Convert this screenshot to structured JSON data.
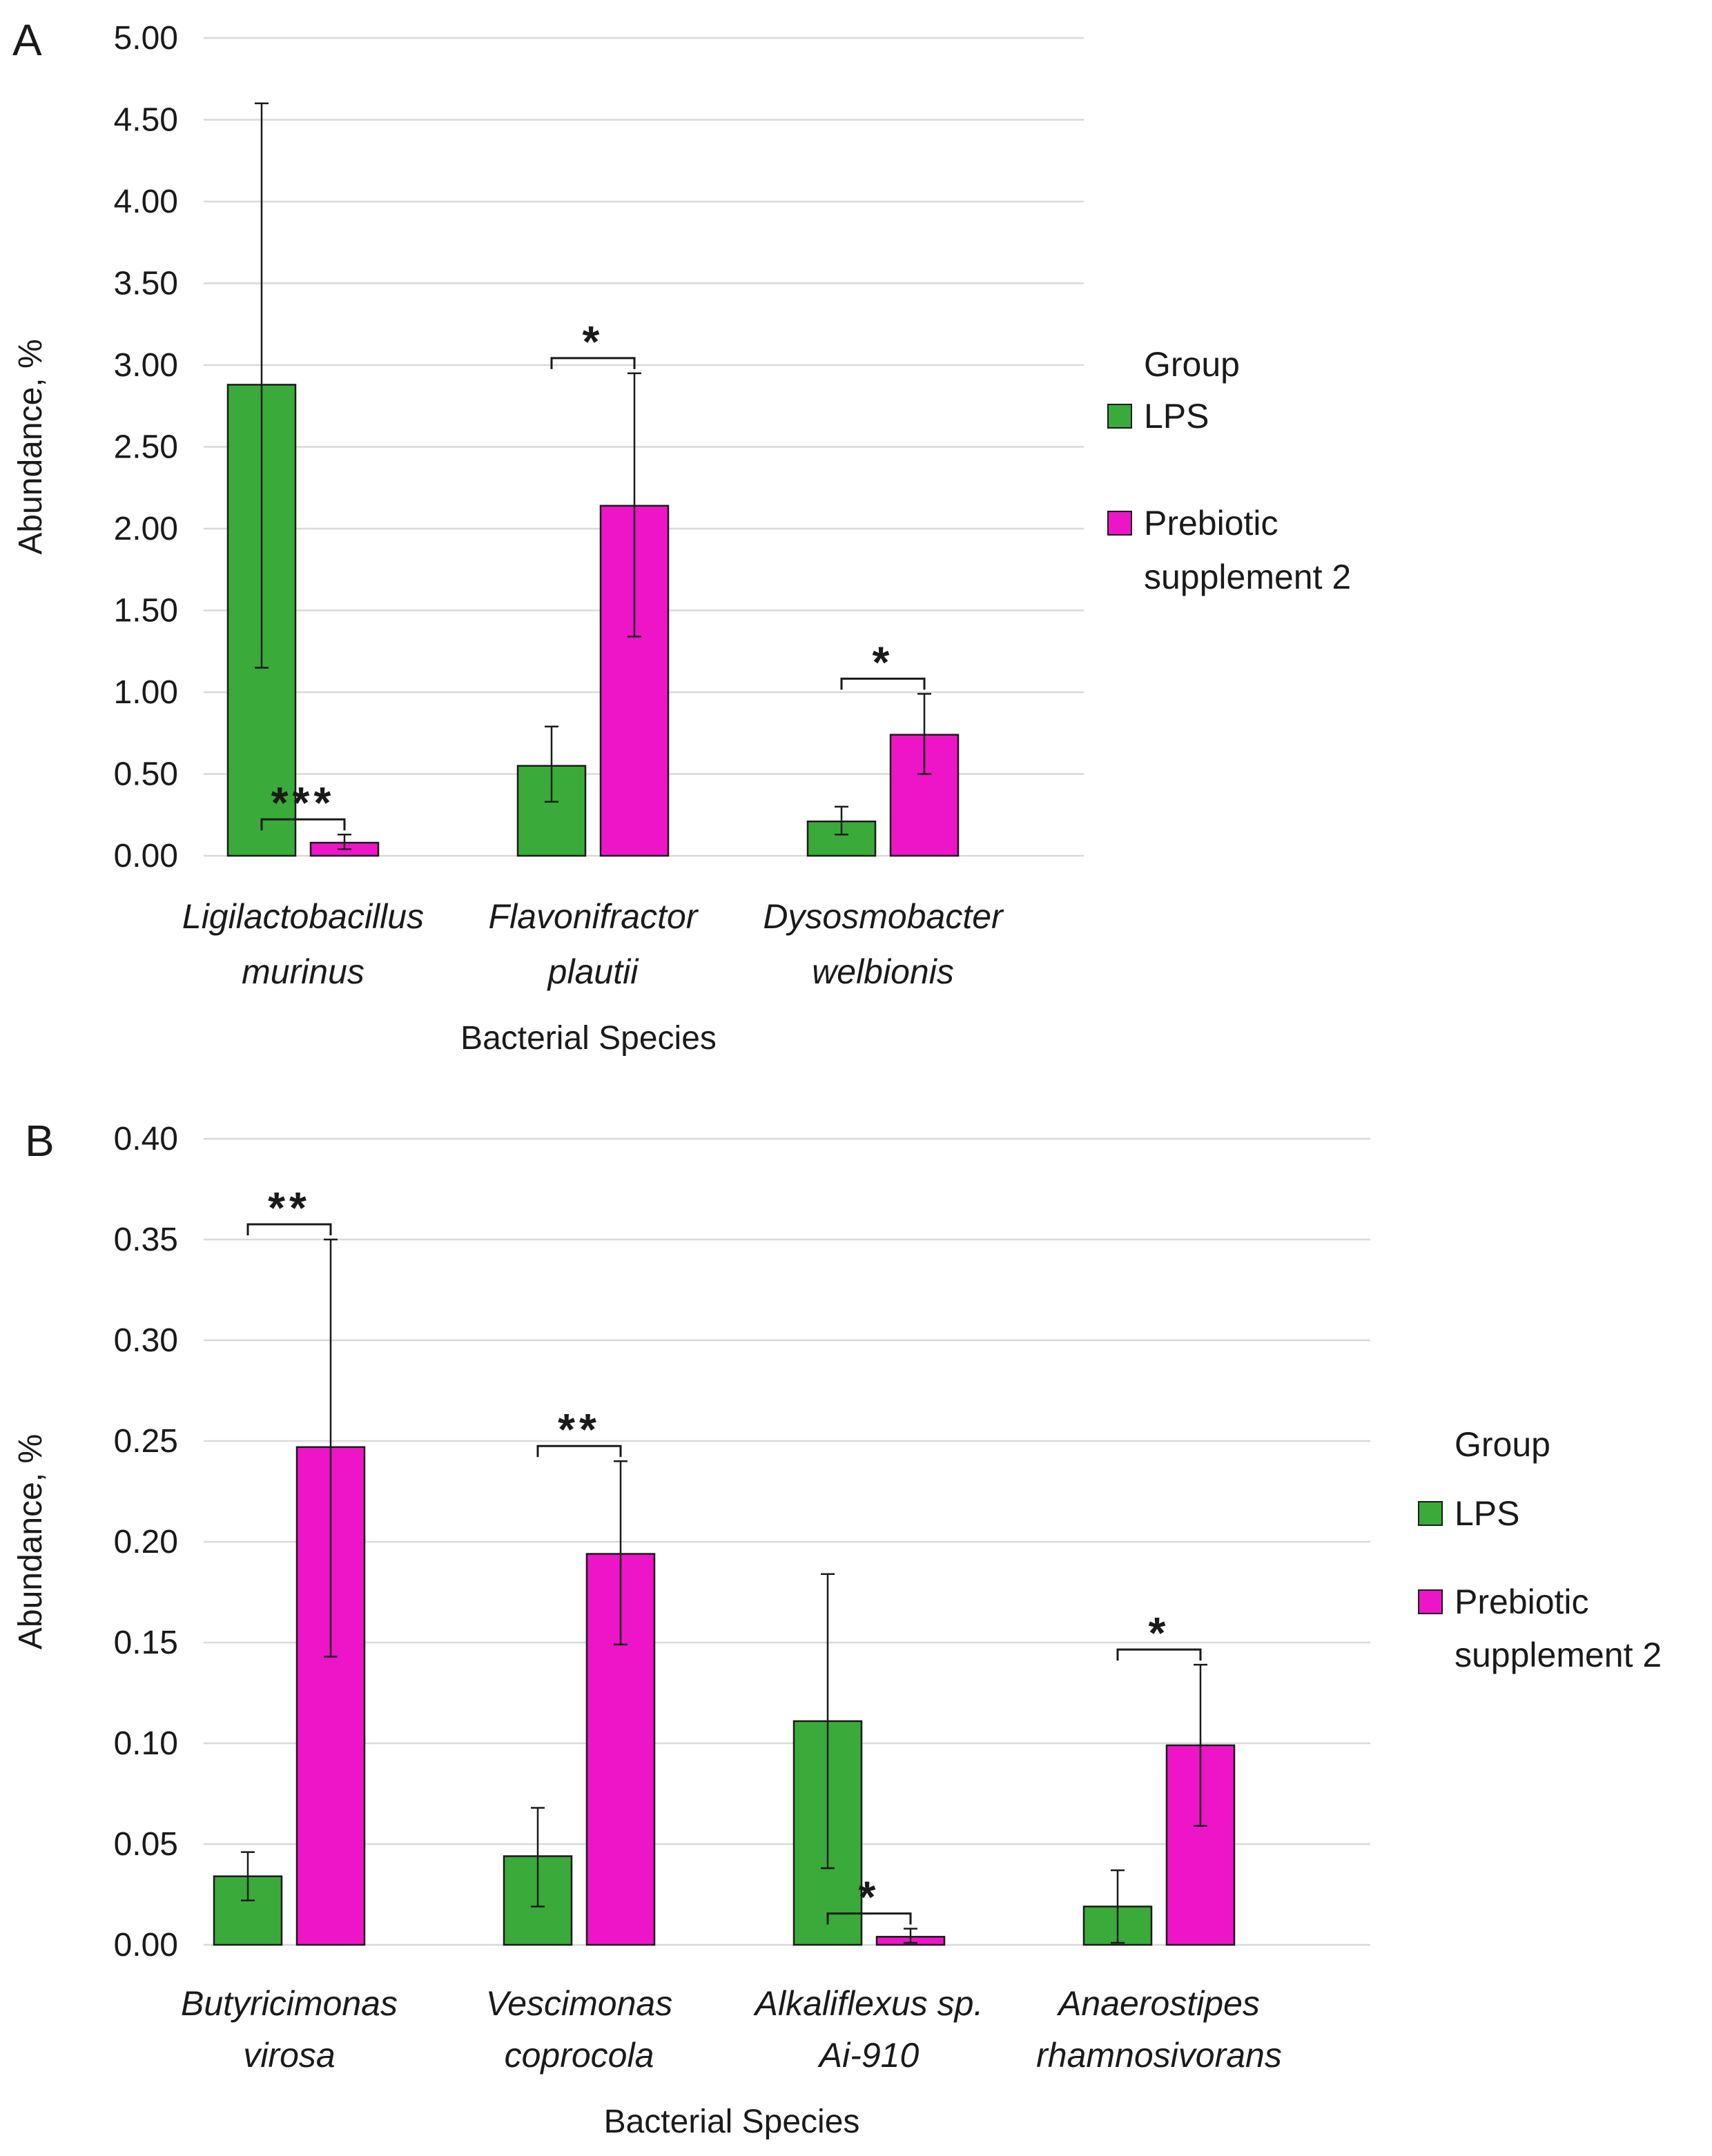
{
  "chart_data": [
    {
      "panel": "A",
      "type": "bar",
      "xlabel": "Bacterial Species",
      "ylabel": "Abundance, %",
      "ylim": [
        0,
        5
      ],
      "yticks": [
        "0.00",
        "0.50",
        "1.00",
        "1.50",
        "2.00",
        "2.50",
        "3.00",
        "3.50",
        "4.00",
        "4.50",
        "5.00"
      ],
      "categories": [
        [
          "Ligilactobacillus",
          "murinus"
        ],
        [
          "Flavonifractor",
          "plautii"
        ],
        [
          "Dysosmobacter",
          "welbionis"
        ]
      ],
      "series": [
        {
          "name": "LPS",
          "color": "#3aaa3a",
          "values": [
            2.88,
            0.55,
            0.21
          ],
          "err_low": [
            1.15,
            0.33,
            0.13
          ],
          "err_high": [
            4.6,
            0.79,
            0.3
          ]
        },
        {
          "name": "Prebiotic supplement 2",
          "color": "#ee14c8",
          "values": [
            0.08,
            2.14,
            0.74
          ],
          "err_low": [
            0.04,
            1.34,
            0.5
          ],
          "err_high": [
            0.13,
            2.95,
            0.99
          ]
        }
      ],
      "significance": [
        "***",
        "*",
        "*"
      ],
      "legend": {
        "title": "Group",
        "items": [
          [
            "LPS"
          ],
          [
            "Prebiotic",
            "supplement 2"
          ]
        ],
        "position": "right"
      }
    },
    {
      "panel": "B",
      "type": "bar",
      "xlabel": "Bacterial Species",
      "ylabel": "Abundance, %",
      "ylim": [
        0,
        0.4
      ],
      "yticks": [
        "0.00",
        "0.05",
        "0.10",
        "0.15",
        "0.20",
        "0.25",
        "0.30",
        "0.35",
        "0.40"
      ],
      "categories": [
        [
          "Butyricimonas",
          "virosa"
        ],
        [
          "Vescimonas",
          "coprocola"
        ],
        [
          "Alkaliflexus sp.",
          "Ai-910"
        ],
        [
          "Anaerostipes",
          "rhamnosivorans"
        ]
      ],
      "series": [
        {
          "name": "LPS",
          "color": "#3aaa3a",
          "values": [
            0.034,
            0.044,
            0.111,
            0.019
          ],
          "err_low": [
            0.022,
            0.019,
            0.038,
            0.001
          ],
          "err_high": [
            0.046,
            0.068,
            0.184,
            0.037
          ]
        },
        {
          "name": "Prebiotic supplement 2",
          "color": "#ee14c8",
          "values": [
            0.247,
            0.194,
            0.004,
            0.099
          ],
          "err_low": [
            0.143,
            0.149,
            0.001,
            0.059
          ],
          "err_high": [
            0.35,
            0.24,
            0.008,
            0.139
          ]
        }
      ],
      "significance": [
        "**",
        "**",
        "*",
        "*"
      ],
      "legend": {
        "title": "Group",
        "items": [
          [
            "LPS"
          ],
          [
            "Prebiotic",
            "supplement 2"
          ]
        ],
        "position": "right"
      }
    }
  ]
}
